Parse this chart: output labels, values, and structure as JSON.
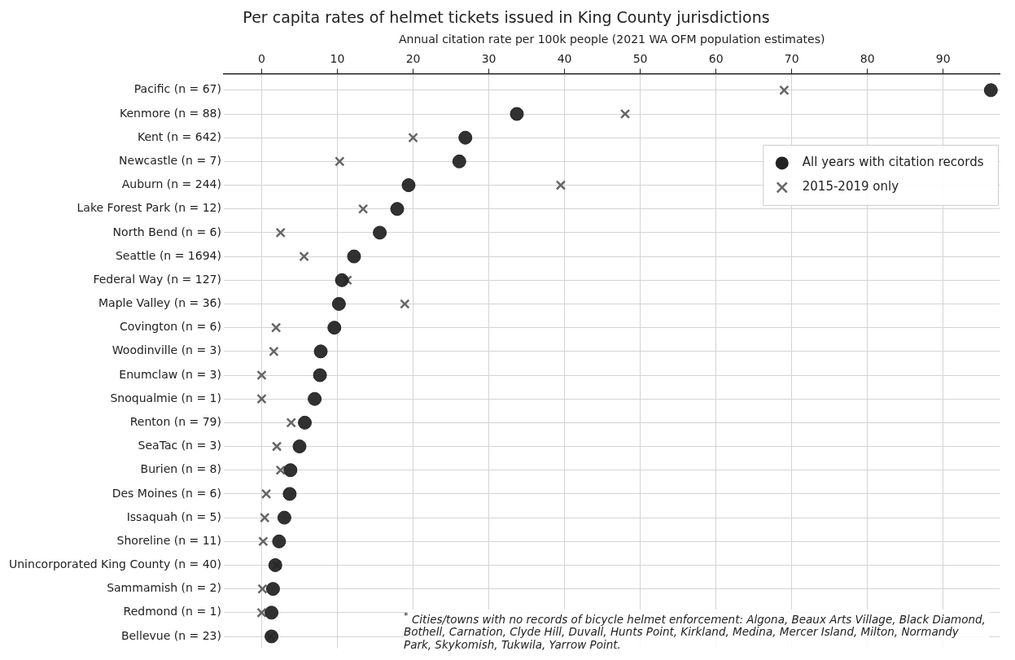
{
  "chart_data": {
    "type": "scatter",
    "title": "Per capita rates of helmet tickets issued in King County jurisdictions",
    "xlabel": "Annual citation rate per 100k people (2021 WA OFM population estimates)",
    "categories": [
      "Pacific (n = 67)",
      "Kenmore (n = 88)",
      "Kent (n = 642)",
      "Newcastle (n = 7)",
      "Auburn (n = 244)",
      "Lake Forest Park (n = 12)",
      "North Bend (n = 6)",
      "Seattle (n = 1694)",
      "Federal Way (n = 127)",
      "Maple Valley (n = 36)",
      "Covington (n = 6)",
      "Woodinville (n = 3)",
      "Enumclaw (n = 3)",
      "Snoqualmie (n = 1)",
      "Renton (n = 79)",
      "SeaTac (n = 3)",
      "Burien (n = 8)",
      "Des Moines (n = 6)",
      "Issaquah (n = 5)",
      "Shoreline (n = 11)",
      "Unincorporated King County (n = 40)",
      "Sammamish (n = 2)",
      "Redmond (n = 1)",
      "Bellevue (n = 23)"
    ],
    "orientation": "horizontal",
    "series": [
      {
        "name": "All years with citation records",
        "color": "#222222",
        "marker": "circle",
        "values": [
          96.3,
          33.7,
          26.9,
          26.1,
          19.4,
          17.9,
          15.6,
          12.2,
          10.6,
          10.2,
          9.6,
          7.8,
          7.7,
          7.0,
          5.7,
          5.0,
          3.8,
          3.7,
          3.0,
          2.3,
          1.8,
          1.5,
          1.3,
          1.3
        ]
      },
      {
        "name": "2015-2019 only",
        "color": "#666666",
        "marker": "cross",
        "values": [
          69.0,
          48.0,
          20.0,
          10.3,
          39.5,
          13.4,
          2.5,
          5.6,
          11.3,
          18.9,
          1.9,
          1.6,
          0,
          0,
          3.9,
          2.0,
          2.5,
          0.6,
          0.4,
          0.2,
          2.0,
          0.1,
          0,
          1.2
        ]
      }
    ],
    "xlim": [
      -5,
      97.5
    ],
    "xticks": [
      0,
      10,
      20,
      30,
      40,
      50,
      60,
      70,
      80,
      90
    ],
    "grid": true,
    "legend": "top right",
    "annotations": [
      "$^{*}$ Cities/towns with no records of bicycle helmet enforcement: Algona, Beaux Arts Village, Black Diamond, Bothell, Carnation, Clyde Hill, Duvall, Hunts Point, Kirkland, Medina, Mercer Island, Milton, Normandy Park, Skykomish, Tukwila, Yarrow Point."
    ]
  }
}
